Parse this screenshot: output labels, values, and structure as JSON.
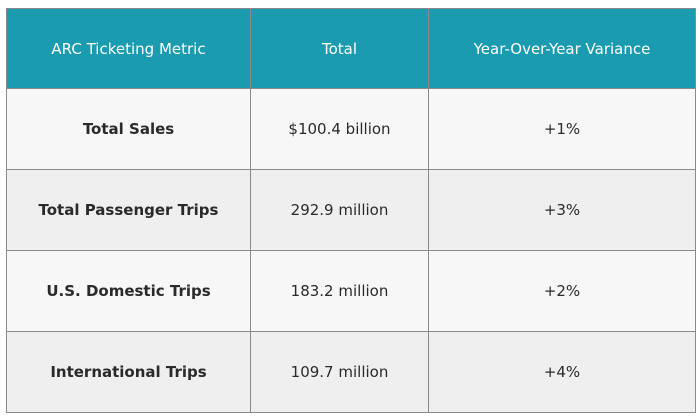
{
  "table": {
    "header": [
      "ARC Ticketing Metric",
      "Total",
      "Year-Over-Year Variance"
    ],
    "rows": [
      [
        "Total Sales",
        "$100.4 billion",
        "+1%"
      ],
      [
        "Total Passenger Trips",
        "292.9 million",
        "+3%"
      ],
      [
        "U.S. Domestic Trips",
        "183.2 million",
        "+2%"
      ],
      [
        "International Trips",
        "109.7 million",
        "+4%"
      ]
    ]
  }
}
